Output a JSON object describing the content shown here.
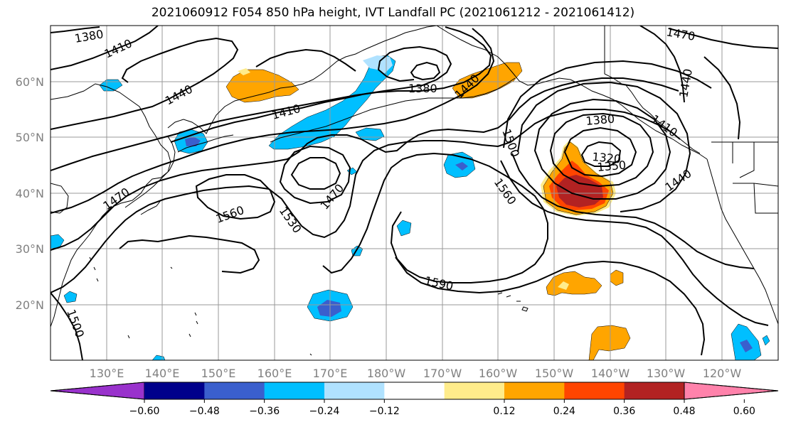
{
  "title": "2021060912 F054 850 hPa height, IVT Landfall PC (2021061212 - 2021061412)",
  "map": {
    "lat_labels": [
      "60°N",
      "50°N",
      "40°N",
      "30°N",
      "20°N"
    ],
    "lon_labels": [
      "130°E",
      "140°E",
      "150°E",
      "160°E",
      "170°E",
      "180°W",
      "170°W",
      "160°W",
      "150°W",
      "140°W",
      "130°W",
      "120°W"
    ],
    "contour_labels": [
      "1380",
      "1410",
      "1440",
      "1410",
      "1380",
      "1440",
      "1470",
      "1440",
      "1410",
      "1380",
      "1320",
      "1350",
      "1440",
      "1500",
      "1560",
      "1470",
      "1560",
      "1530",
      "1470",
      "1590",
      "1500"
    ],
    "colors": {
      "gridline": "#999999",
      "coastline": "#000000",
      "contour": "#000000"
    }
  },
  "colorbar": {
    "colors": [
      "#9932CC",
      "#00008B",
      "#3A5FCD",
      "#00BFFF",
      "#B0E2FF",
      "#FFFFFF",
      "#FFEC8B",
      "#FFA500",
      "#FF4500",
      "#B22222",
      "#FF82AB"
    ],
    "tick_labels": [
      "-0.60",
      "-0.48",
      "-0.36",
      "-0.24",
      "-0.12",
      "0.12",
      "0.24",
      "0.36",
      "0.48",
      "0.60"
    ]
  }
}
